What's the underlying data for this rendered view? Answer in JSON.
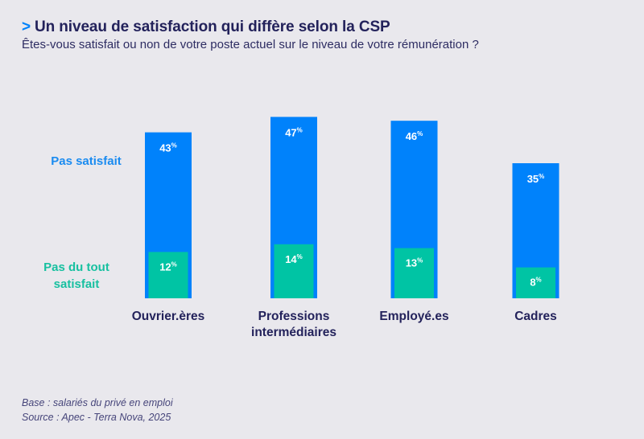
{
  "header": {
    "chevron": ">",
    "title": "Un niveau de satisfaction qui diffère selon la CSP",
    "subtitle": "Êtes-vous satisfait ou non de votre poste actuel sur le niveau de votre rémunération ?"
  },
  "legend": {
    "pas_satisfait": "Pas satisfait",
    "pas_du_tout": "Pas du tout satisfait"
  },
  "colors": {
    "background": "#E9E8ED",
    "pas_satisfait": "#0082FB",
    "pas_du_tout": "#00C4A4",
    "title": "#23225B"
  },
  "footer": {
    "base": "Base : salariés du privé en emploi",
    "source": "Source :  Apec - Terra Nova, 2025"
  },
  "chart_data": {
    "type": "bar",
    "layout": "overlapping",
    "title": "Un niveau de satisfaction qui diffère selon la CSP",
    "subtitle": "Êtes-vous satisfait ou non de votre poste actuel sur le niveau de votre rémunération ?",
    "categories": [
      "Ouvrier.ères",
      "Professions intermédiaires",
      "Employé.es",
      "Cadres"
    ],
    "category_lines": [
      [
        "Ouvrier.ères"
      ],
      [
        "Professions",
        "intermédiaires"
      ],
      [
        "Employé.es"
      ],
      [
        "Cadres"
      ]
    ],
    "series": [
      {
        "name": "Pas satisfait",
        "values": [
          43,
          47,
          46,
          35
        ],
        "unit": "%"
      },
      {
        "name": "Pas du tout satisfait",
        "values": [
          12,
          14,
          13,
          8
        ],
        "unit": "%"
      }
    ],
    "unit_label": "%",
    "xlabel": "",
    "ylabel": "",
    "ylim": [
      0,
      47
    ],
    "grid": false,
    "legend_position": "left"
  }
}
